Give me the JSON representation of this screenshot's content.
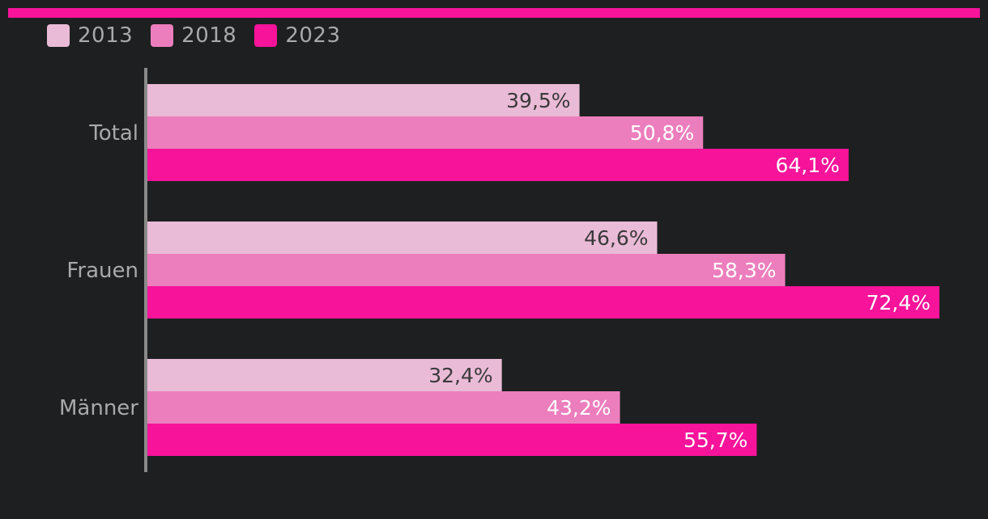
{
  "chart_data": {
    "type": "bar",
    "orientation": "horizontal",
    "categories": [
      "Total",
      "Frauen",
      "Männer"
    ],
    "series": [
      {
        "name": "2013",
        "values": [
          39.5,
          46.6,
          32.4
        ],
        "labels": [
          "39,5%",
          "46,6%",
          "32,4%"
        ],
        "color": "#eabbd6"
      },
      {
        "name": "2018",
        "values": [
          50.8,
          58.3,
          43.2
        ],
        "labels": [
          "50,8%",
          "58,3%",
          "43,2%"
        ],
        "color": "#ec7ebd"
      },
      {
        "name": "2023",
        "values": [
          64.1,
          72.4,
          55.7
        ],
        "labels": [
          "64,1%",
          "72,4%",
          "55,7%"
        ],
        "color": "#f7139a"
      }
    ],
    "xlim": [
      0,
      72.4
    ],
    "grid": false,
    "legend_position": "top-left"
  },
  "colors": {
    "background": "#1e1f21",
    "accent": "#f7139a",
    "axis": "#8a8a8a",
    "category_text": "#a9a9ad",
    "label_dark": "#3a3a3c",
    "label_light": "#ffffff"
  }
}
